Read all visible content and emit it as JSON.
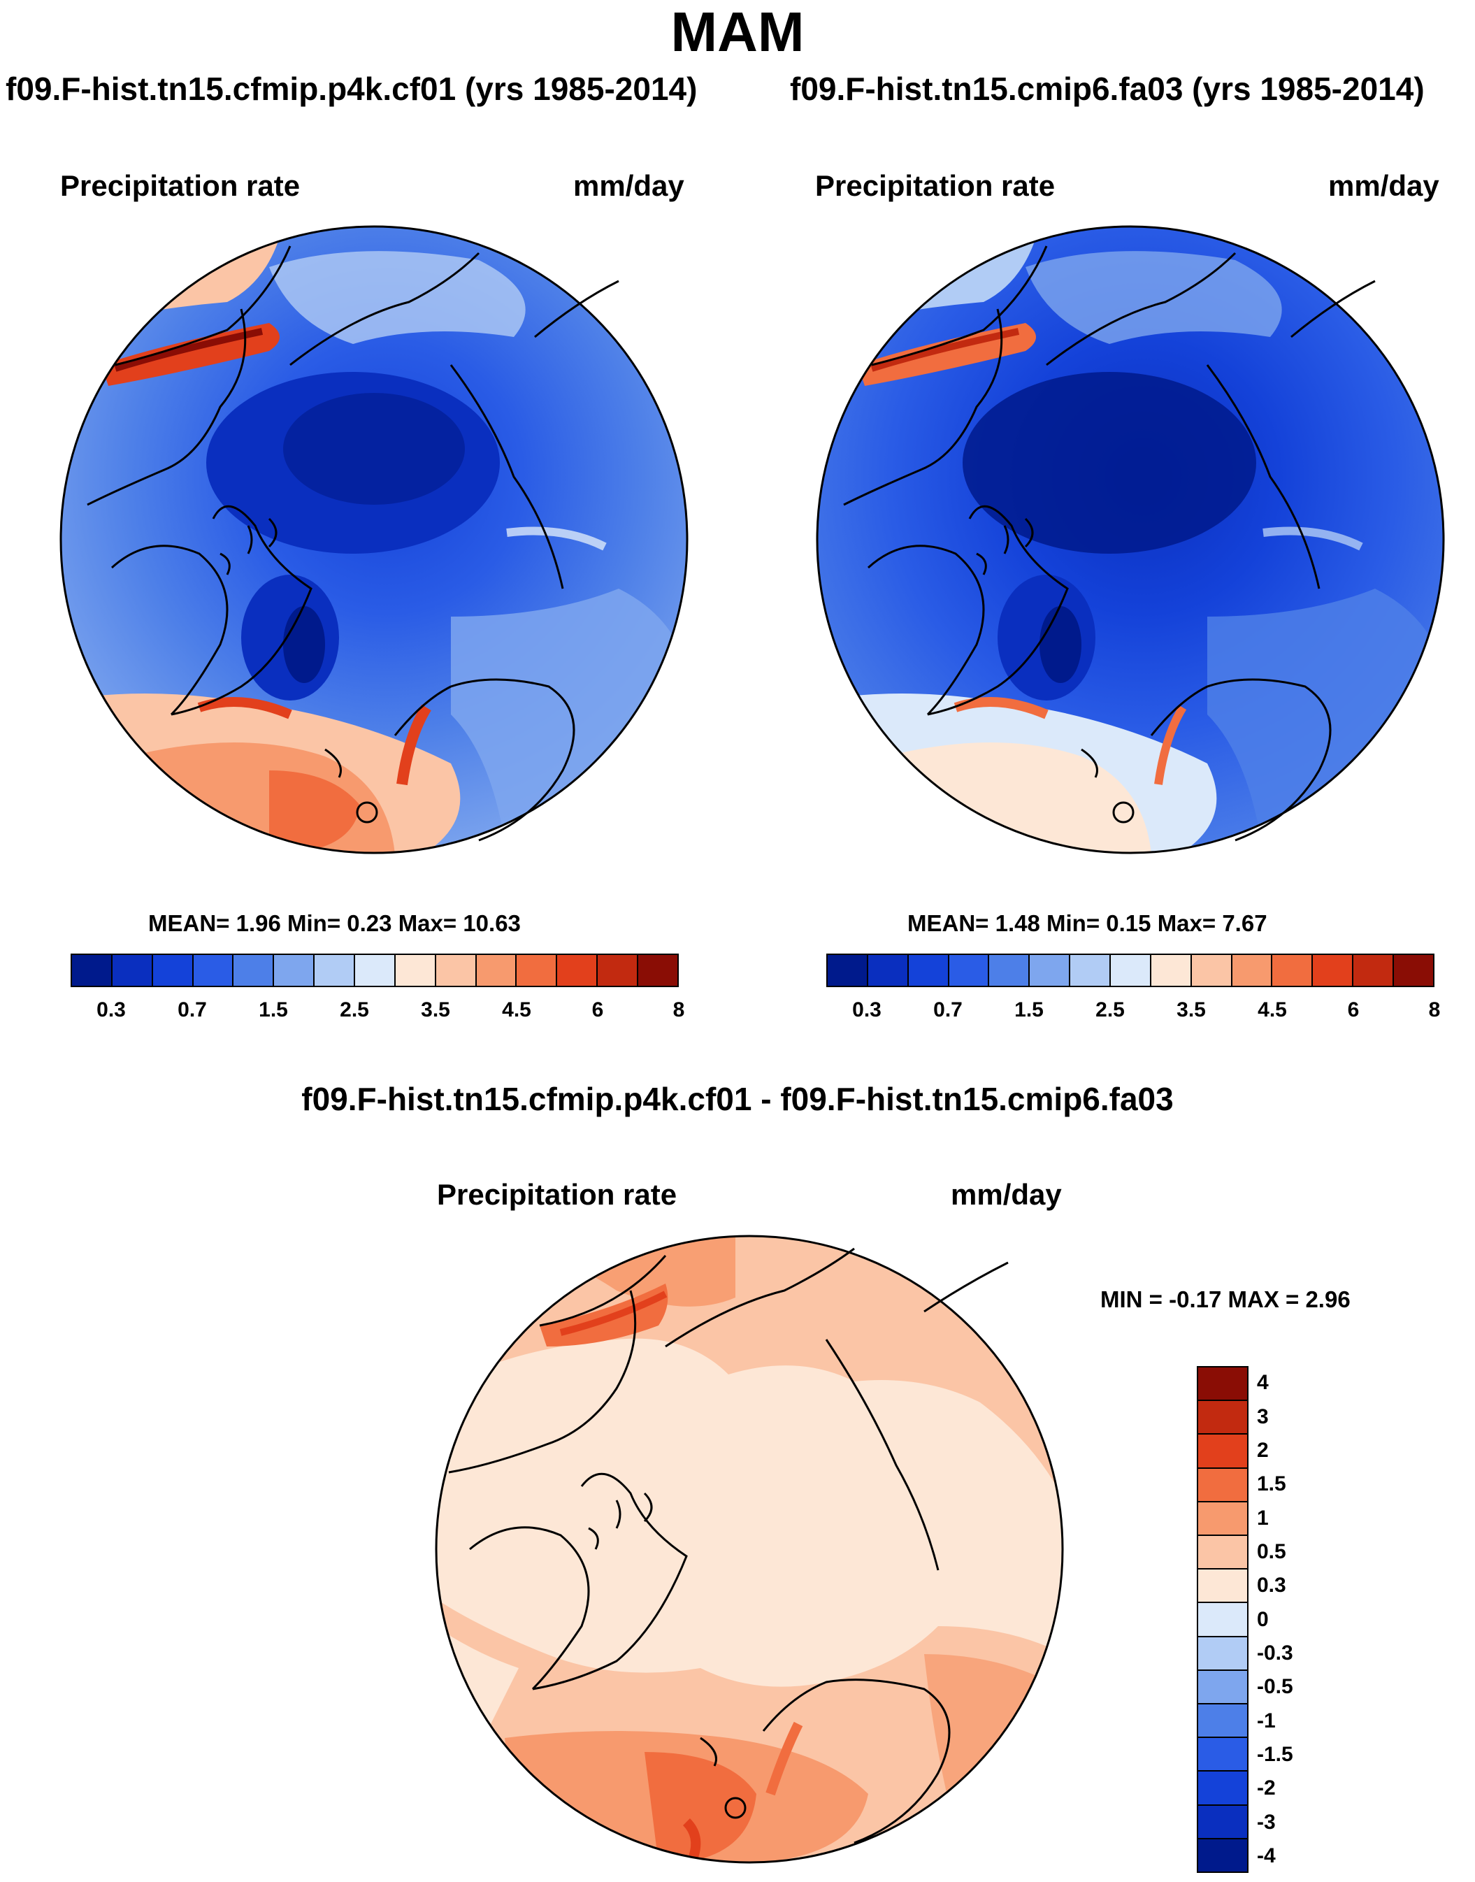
{
  "season": "MAM",
  "panels": [
    {
      "title": "f09.F-hist.tn15.cfmip.p4k.cf01 (yrs 1985-2014)",
      "variable": "Precipitation rate",
      "units": "mm/day",
      "stats": {
        "mean_label": "MEAN=",
        "mean": "1.96",
        "min_label": "Min=",
        "min": "0.23",
        "max_label": "Max=",
        "max": "10.63"
      }
    },
    {
      "title": "f09.F-hist.tn15.cmip6.fa03 (yrs 1985-2014)",
      "variable": "Precipitation rate",
      "units": "mm/day",
      "stats": {
        "mean_label": "MEAN=",
        "mean": "1.48",
        "min_label": "Min=",
        "min": "0.15",
        "max_label": "Max=",
        "max": "7.67"
      }
    },
    {
      "title": "f09.F-hist.tn15.cfmip.p4k.cf01 - f09.F-hist.tn15.cmip6.fa03",
      "variable": "Precipitation rate",
      "units": "mm/day",
      "stats": {
        "min_label": "MIN =",
        "min": "-0.17",
        "max_label": "MAX =",
        "max": "2.96"
      }
    }
  ],
  "colorbar_main": {
    "ticks": [
      "0.3",
      "0.7",
      "1.5",
      "2.5",
      "3.5",
      "4.5",
      "6",
      "8"
    ],
    "colors": [
      "#001a8c",
      "#0a2fbf",
      "#1442d9",
      "#2a5ce6",
      "#4d7fe8",
      "#7ea6ee",
      "#b1ccf5",
      "#dbe9fa",
      "#fde7d6",
      "#fbc5a6",
      "#f79a6e",
      "#f16d3f",
      "#e2401c",
      "#c22a10",
      "#8a0d05"
    ]
  },
  "colorbar_diff": {
    "ticks": [
      "4",
      "3",
      "2",
      "1.5",
      "1",
      "0.5",
      "0.3",
      "0",
      "-0.3",
      "-0.5",
      "-1",
      "-1.5",
      "-2",
      "-3",
      "-4"
    ],
    "colors": [
      "#8a0d05",
      "#c22a10",
      "#e2401c",
      "#f16d3f",
      "#f79a6e",
      "#fbc5a6",
      "#fde7d6",
      "#dbe9fa",
      "#b1ccf5",
      "#7ea6ee",
      "#4d7fe8",
      "#2a5ce6",
      "#1442d9",
      "#0a2fbf",
      "#001a8c"
    ]
  },
  "chart_data": [
    {
      "type": "heatmap",
      "projection": "north polar stereographic",
      "title": "f09.F-hist.tn15.cfmip.p4k.cf01 (yrs 1985-2014)",
      "variable": "Precipitation rate",
      "units": "mm/day",
      "mean": 1.96,
      "min": 0.23,
      "max": 10.63,
      "levels": [
        0.3,
        0.5,
        0.7,
        1,
        1.5,
        2,
        2.5,
        3,
        3.5,
        4,
        4.5,
        5,
        6,
        7,
        8
      ]
    },
    {
      "type": "heatmap",
      "projection": "north polar stereographic",
      "title": "f09.F-hist.tn15.cmip6.fa03 (yrs 1985-2014)",
      "variable": "Precipitation rate",
      "units": "mm/day",
      "mean": 1.48,
      "min": 0.15,
      "max": 7.67,
      "levels": [
        0.3,
        0.5,
        0.7,
        1,
        1.5,
        2,
        2.5,
        3,
        3.5,
        4,
        4.5,
        5,
        6,
        7,
        8
      ]
    },
    {
      "type": "heatmap",
      "projection": "north polar stereographic",
      "title": "f09.F-hist.tn15.cfmip.p4k.cf01 - f09.F-hist.tn15.cmip6.fa03",
      "variable": "Precipitation rate",
      "units": "mm/day",
      "min": -0.17,
      "max": 2.96,
      "levels": [
        -4,
        -3,
        -2,
        -1.5,
        -1,
        -0.5,
        -0.3,
        0,
        0.3,
        0.5,
        1,
        1.5,
        2,
        3,
        4
      ]
    }
  ]
}
